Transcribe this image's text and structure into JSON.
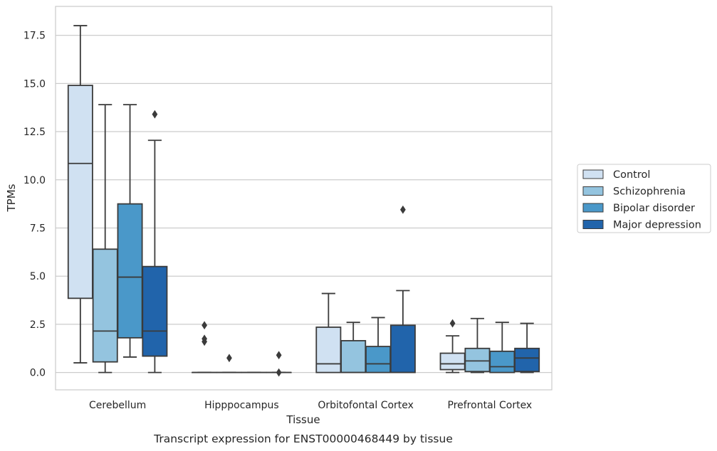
{
  "chart_data": {
    "type": "boxplot",
    "caption": "Transcript expression for ENST00000468449 by tissue",
    "xlabel": "Tissue",
    "ylabel": "TPMs",
    "ylim": [
      -0.9,
      19.0
    ],
    "yticks": [
      "0.0",
      "2.5",
      "5.0",
      "7.5",
      "10.0",
      "12.5",
      "15.0",
      "17.5"
    ],
    "grid": "horizontal",
    "legend_position": "right",
    "categories": [
      "Cerebellum",
      "Hipppocampus",
      "Orbitofontal Cortex",
      "Prefrontal Cortex"
    ],
    "series": [
      {
        "name": "Control",
        "color": "#d0e1f2",
        "boxes": [
          {
            "whislo": 0.5,
            "q1": 3.85,
            "med": 10.85,
            "q3": 14.9,
            "whishi": 18.0,
            "fliers": []
          },
          {
            "whislo": 0.0,
            "q1": 0.0,
            "med": 0.0,
            "q3": 0.0,
            "whishi": 0.0,
            "fliers": [
              1.6,
              1.75,
              2.45
            ]
          },
          {
            "whislo": 0.0,
            "q1": 0.0,
            "med": 0.45,
            "q3": 2.35,
            "whishi": 4.1,
            "fliers": []
          },
          {
            "whislo": 0.0,
            "q1": 0.15,
            "med": 0.45,
            "q3": 1.0,
            "whishi": 1.9,
            "fliers": [
              2.55
            ]
          }
        ]
      },
      {
        "name": "Schizophrenia",
        "color": "#94c4df",
        "boxes": [
          {
            "whislo": 0.0,
            "q1": 0.55,
            "med": 2.15,
            "q3": 6.4,
            "whishi": 13.9,
            "fliers": []
          },
          {
            "whislo": 0.0,
            "q1": 0.0,
            "med": 0.0,
            "q3": 0.0,
            "whishi": 0.0,
            "fliers": [
              0.75
            ]
          },
          {
            "whislo": 0.0,
            "q1": 0.0,
            "med": 0.0,
            "q3": 1.65,
            "whishi": 2.6,
            "fliers": []
          },
          {
            "whislo": 0.0,
            "q1": 0.05,
            "med": 0.6,
            "q3": 1.25,
            "whishi": 2.8,
            "fliers": []
          }
        ]
      },
      {
        "name": "Bipolar disorder",
        "color": "#4a98c9",
        "boxes": [
          {
            "whislo": 0.8,
            "q1": 1.8,
            "med": 4.95,
            "q3": 8.75,
            "whishi": 13.9,
            "fliers": []
          },
          {
            "whislo": 0.0,
            "q1": 0.0,
            "med": 0.0,
            "q3": 0.0,
            "whishi": 0.0,
            "fliers": []
          },
          {
            "whislo": 0.0,
            "q1": 0.0,
            "med": 0.45,
            "q3": 1.35,
            "whishi": 2.85,
            "fliers": []
          },
          {
            "whislo": 0.0,
            "q1": 0.0,
            "med": 0.3,
            "q3": 1.1,
            "whishi": 2.6,
            "fliers": []
          }
        ]
      },
      {
        "name": "Major depression",
        "color": "#2164ab",
        "boxes": [
          {
            "whislo": 0.0,
            "q1": 0.85,
            "med": 2.15,
            "q3": 5.5,
            "whishi": 12.05,
            "fliers": [
              13.4
            ]
          },
          {
            "whislo": 0.0,
            "q1": 0.0,
            "med": 0.0,
            "q3": 0.0,
            "whishi": 0.0,
            "fliers": [
              0.0,
              0.9
            ]
          },
          {
            "whislo": 0.0,
            "q1": 0.0,
            "med": 0.0,
            "q3": 2.45,
            "whishi": 4.25,
            "fliers": [
              8.45
            ]
          },
          {
            "whislo": 0.0,
            "q1": 0.05,
            "med": 0.75,
            "q3": 1.25,
            "whishi": 2.55,
            "fliers": []
          }
        ]
      }
    ]
  }
}
